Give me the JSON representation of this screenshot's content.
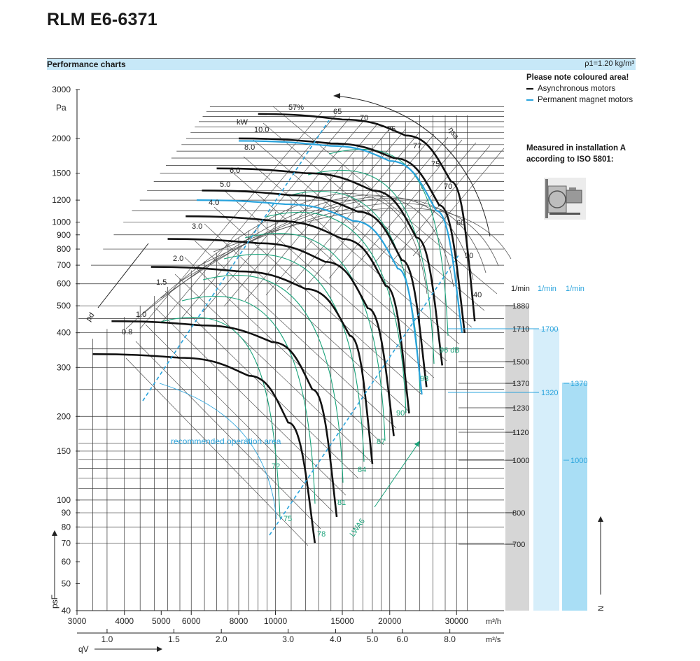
{
  "header": {
    "title": "RLM E6-6371"
  },
  "section": {
    "title": "Performance charts",
    "density": "ρ1=1.20 kg/m³"
  },
  "legend": {
    "note": "Please note coloured area!",
    "items": [
      {
        "label": "Asynchronous motors",
        "color": "#111111"
      },
      {
        "label": "Permanent magnet motors",
        "color": "#29a3dc"
      }
    ]
  },
  "installation": {
    "line1": "Measured in installation A",
    "line2": "according to ISO 5801:"
  },
  "colors": {
    "black_curve": "#111111",
    "pm_curve": "#29a3dc",
    "sound_curve": "#1aa37a",
    "grid": "#333333",
    "gray_bar": "#d6d6d6",
    "blue_bar1": "#d6eefa",
    "blue_bar2": "#a9def5"
  },
  "chart_data": {
    "type": "line",
    "title": "",
    "x_label": "qV",
    "y_label": "psF",
    "y_unit": "Pa",
    "x_unit_top": "m³/h",
    "x_unit_bottom": "m³/s",
    "y_scale": "log",
    "x_scale": "log",
    "y_ticks": [
      "3000",
      "2000",
      "1500",
      "1200",
      "1000",
      "900",
      "800",
      "700",
      "600",
      "500",
      "400",
      "300",
      "200",
      "150",
      "100",
      "90",
      "80",
      "70",
      "60",
      "50",
      "40"
    ],
    "y_tick_values": [
      3000,
      2000,
      1500,
      1200,
      1000,
      900,
      800,
      700,
      600,
      500,
      400,
      300,
      200,
      150,
      100,
      90,
      80,
      70,
      60,
      50,
      40
    ],
    "x_ticks_top": [
      "3000",
      "4000",
      "5000",
      "6000",
      "8000",
      "10000",
      "15000",
      "20000",
      "30000"
    ],
    "x_tick_values_top": [
      3000,
      4000,
      5000,
      6000,
      8000,
      10000,
      15000,
      20000,
      30000
    ],
    "x_ticks_bottom": [
      "1.0",
      "1.5",
      "2.0",
      "3.0",
      "4.0",
      "5.0",
      "6.0",
      "8.0"
    ],
    "x_tick_values_bottom": [
      1.0,
      1.5,
      2.0,
      3.0,
      4.0,
      5.0,
      6.0,
      8.0
    ],
    "power_unit": "kW",
    "power_labels": [
      "10.0",
      "8.0",
      "6.0",
      "5.0",
      "4.0",
      "3.0",
      "2.0",
      "1.5",
      "1.0",
      "0.8"
    ],
    "efficiency_label": "ηsa",
    "efficiency_labels": [
      "57%",
      "65",
      "70",
      "75",
      "77",
      "75",
      "70",
      "60",
      "50",
      "40"
    ],
    "sound_label": "LWA6",
    "sound_labels": [
      "96 dB",
      "93",
      "90",
      "87",
      "84",
      "81",
      "78",
      "75",
      "72"
    ],
    "pressure_axis_label": "pd",
    "annotation": "recommended operation area",
    "speed_header": "1/min",
    "speed_scales": [
      {
        "name": "async",
        "header": "1/min",
        "values": [
          "1880",
          "1710",
          "1500",
          "1370",
          "1230",
          "1120",
          "1000",
          "800",
          "700"
        ]
      },
      {
        "name": "pm1",
        "header": "1/min",
        "values": [
          "1700",
          "1320"
        ]
      },
      {
        "name": "pm2",
        "header": "1/min",
        "values": [
          "1370",
          "1000"
        ]
      }
    ],
    "n_label": "N",
    "series": [
      {
        "name": "1880",
        "motor": "async",
        "points": [
          [
            9000,
            2450
          ],
          [
            15000,
            2340
          ],
          [
            22000,
            2050
          ],
          [
            29000,
            1400
          ],
          [
            33500,
            440
          ]
        ]
      },
      {
        "name": "1710",
        "motor": "async",
        "points": [
          [
            8000,
            2000
          ],
          [
            14000,
            1920
          ],
          [
            20500,
            1700
          ],
          [
            27000,
            1150
          ],
          [
            31500,
            400
          ]
        ]
      },
      {
        "name": "1500",
        "motor": "async",
        "points": [
          [
            7000,
            1560
          ],
          [
            12000,
            1500
          ],
          [
            18000,
            1300
          ],
          [
            23500,
            880
          ],
          [
            27500,
            305
          ]
        ]
      },
      {
        "name": "1370",
        "motor": "async",
        "points": [
          [
            6400,
            1300
          ],
          [
            11000,
            1250
          ],
          [
            16500,
            1090
          ],
          [
            21500,
            730
          ],
          [
            25000,
            255
          ]
        ]
      },
      {
        "name": "1230",
        "motor": "async",
        "points": [
          [
            5800,
            1050
          ],
          [
            10000,
            1010
          ],
          [
            15000,
            870
          ],
          [
            19500,
            590
          ],
          [
            22500,
            205
          ]
        ]
      },
      {
        "name": "1120",
        "motor": "async",
        "points": [
          [
            5200,
            870
          ],
          [
            9000,
            840
          ],
          [
            13500,
            720
          ],
          [
            17500,
            490
          ],
          [
            20500,
            170
          ]
        ]
      },
      {
        "name": "1000",
        "motor": "async",
        "points": [
          [
            4700,
            690
          ],
          [
            8000,
            665
          ],
          [
            12000,
            575
          ],
          [
            15700,
            390
          ],
          [
            18000,
            135
          ]
        ]
      },
      {
        "name": "800",
        "motor": "async",
        "points": [
          [
            3700,
            440
          ],
          [
            6400,
            425
          ],
          [
            9800,
            370
          ],
          [
            12500,
            250
          ],
          [
            14500,
            87
          ]
        ]
      },
      {
        "name": "700",
        "motor": "async",
        "points": [
          [
            3300,
            335
          ],
          [
            5600,
            325
          ],
          [
            8500,
            280
          ],
          [
            10800,
            190
          ],
          [
            12700,
            70
          ]
        ]
      },
      {
        "name": "1700",
        "motor": "pm",
        "points": [
          [
            8000,
            1960
          ],
          [
            14000,
            1880
          ],
          [
            20000,
            1660
          ],
          [
            26500,
            1100
          ],
          [
            31000,
            400
          ]
        ]
      },
      {
        "name": "1320",
        "motor": "pm",
        "points": [
          [
            6200,
            1200
          ],
          [
            10600,
            1160
          ],
          [
            16000,
            1010
          ],
          [
            21000,
            680
          ],
          [
            24300,
            240
          ]
        ]
      }
    ]
  }
}
